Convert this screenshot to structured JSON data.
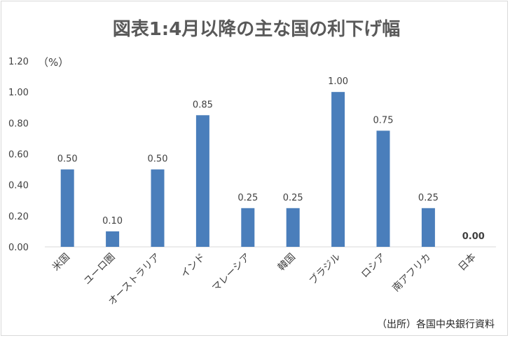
{
  "chart_data": {
    "type": "bar",
    "title": "図表1:4月以降の主な国の利下げ幅",
    "unit_label": "（%）",
    "categories": [
      "米国",
      "ユーロ圏",
      "オーストラリア",
      "インド",
      "マレーシア",
      "韓国",
      "ブラジル",
      "ロシア",
      "南アフリカ",
      "日本"
    ],
    "values": [
      0.5,
      0.1,
      0.5,
      0.85,
      0.25,
      0.25,
      1.0,
      0.75,
      0.25,
      0.0
    ],
    "value_labels": [
      "0.50",
      "0.10",
      "0.50",
      "0.85",
      "0.25",
      "0.25",
      "1.00",
      "0.75",
      "0.25",
      "0.00"
    ],
    "ylim": [
      0,
      1.2
    ],
    "yticks": [
      0.0,
      0.2,
      0.4,
      0.6,
      0.8,
      1.0,
      1.2
    ],
    "ytick_labels": [
      "0.00",
      "0.20",
      "0.40",
      "0.60",
      "0.80",
      "1.00",
      "1.20"
    ],
    "grid": false,
    "bar_color": "#4a7ebb",
    "highlight_label_color": "#ff0000",
    "highlight_index": 9,
    "source": "（出所）各国中央銀行資料"
  }
}
